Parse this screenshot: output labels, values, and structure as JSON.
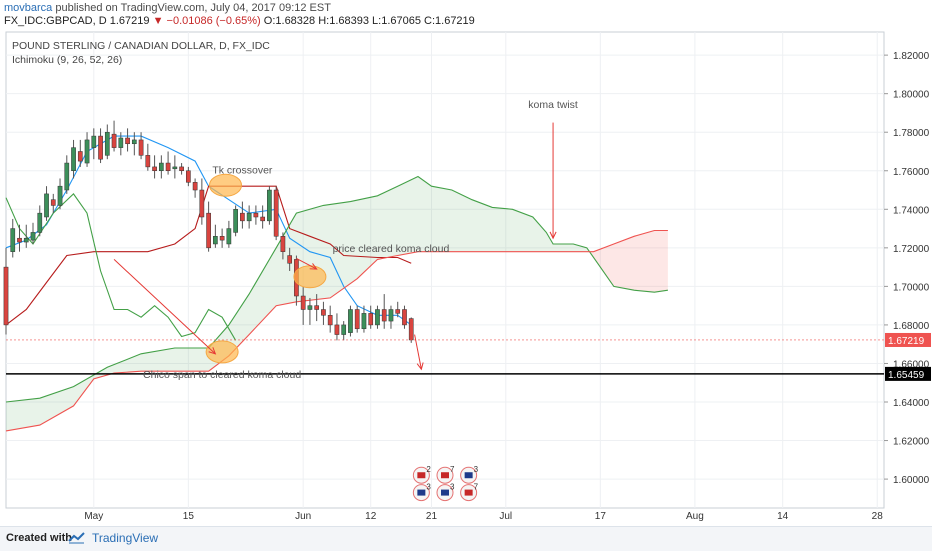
{
  "header": {
    "user": "movbarca",
    "published_text": "published on TradingView.com, July 04, 2017 09:12 EST",
    "quote_prefix": "FX_IDC:GBPCAD, D  1.67219",
    "quote_change": "▼ −0.01086 (−0.65%)",
    "quote_ohlc": " O:1.68328 H:1.68393 L:1.67065 C:1.67219"
  },
  "footer": {
    "created_with": "Created with",
    "brand": "TradingView"
  },
  "chart_data": {
    "type": "candlestick",
    "title": "POUND STERLING / CANADIAN DOLLAR, D, FX_IDC",
    "indicator": "Ichimoku (9, 26, 52, 26)",
    "ylim": [
      1.585,
      1.832
    ],
    "xlim": [
      0,
      130
    ],
    "price_ticks": [
      "1.82000",
      "1.80000",
      "1.78000",
      "1.76000",
      "1.74000",
      "1.72000",
      "1.70000",
      "1.68000",
      "1.66000",
      "1.64000",
      "1.62000",
      "1.60000"
    ],
    "x_ticks": [
      {
        "label": "May",
        "x": 13
      },
      {
        "label": "15",
        "x": 27
      },
      {
        "label": "Jun",
        "x": 44
      },
      {
        "label": "12",
        "x": 54
      },
      {
        "label": "21",
        "x": 63
      },
      {
        "label": "Jul",
        "x": 74
      },
      {
        "label": "17",
        "x": 88
      },
      {
        "label": "Aug",
        "x": 102
      },
      {
        "label": "14",
        "x": 115
      },
      {
        "label": "28",
        "x": 129
      }
    ],
    "last_price": {
      "value": 1.67219,
      "label": "1.67219",
      "color": "#ef5350"
    },
    "horizontal_line": {
      "value": 1.65459,
      "label": "1.65459",
      "color": "#000000"
    },
    "candles": [
      [
        0,
        1.71,
        1.72,
        1.675,
        1.68
      ],
      [
        1,
        1.718,
        1.735,
        1.715,
        1.73
      ],
      [
        2,
        1.725,
        1.732,
        1.718,
        1.723
      ],
      [
        3,
        1.723,
        1.732,
        1.72,
        1.725
      ],
      [
        4,
        1.724,
        1.733,
        1.722,
        1.728
      ],
      [
        5,
        1.728,
        1.742,
        1.726,
        1.738
      ],
      [
        6,
        1.736,
        1.752,
        1.734,
        1.748
      ],
      [
        7,
        1.745,
        1.748,
        1.738,
        1.742
      ],
      [
        8,
        1.742,
        1.756,
        1.74,
        1.752
      ],
      [
        9,
        1.75,
        1.768,
        1.748,
        1.764
      ],
      [
        10,
        1.76,
        1.776,
        1.756,
        1.772
      ],
      [
        11,
        1.77,
        1.776,
        1.762,
        1.765
      ],
      [
        12,
        1.764,
        1.78,
        1.762,
        1.776
      ],
      [
        13,
        1.772,
        1.782,
        1.766,
        1.778
      ],
      [
        14,
        1.778,
        1.782,
        1.764,
        1.766
      ],
      [
        15,
        1.768,
        1.784,
        1.766,
        1.78
      ],
      [
        16,
        1.779,
        1.786,
        1.77,
        1.772
      ],
      [
        17,
        1.772,
        1.78,
        1.768,
        1.777
      ],
      [
        18,
        1.777,
        1.782,
        1.77,
        1.774
      ],
      [
        19,
        1.774,
        1.78,
        1.768,
        1.776
      ],
      [
        20,
        1.776,
        1.78,
        1.766,
        1.768
      ],
      [
        21,
        1.768,
        1.774,
        1.76,
        1.762
      ],
      [
        22,
        1.762,
        1.768,
        1.756,
        1.76
      ],
      [
        23,
        1.76,
        1.768,
        1.756,
        1.764
      ],
      [
        24,
        1.764,
        1.77,
        1.758,
        1.76
      ],
      [
        25,
        1.761,
        1.768,
        1.756,
        1.762
      ],
      [
        26,
        1.762,
        1.764,
        1.758,
        1.76
      ],
      [
        27,
        1.76,
        1.762,
        1.752,
        1.754
      ],
      [
        28,
        1.754,
        1.756,
        1.746,
        1.75
      ],
      [
        29,
        1.75,
        1.756,
        1.732,
        1.736
      ],
      [
        30,
        1.738,
        1.744,
        1.718,
        1.72
      ],
      [
        31,
        1.722,
        1.732,
        1.72,
        1.726
      ],
      [
        32,
        1.726,
        1.73,
        1.72,
        1.724
      ],
      [
        33,
        1.722,
        1.734,
        1.72,
        1.73
      ],
      [
        34,
        1.728,
        1.742,
        1.726,
        1.74
      ],
      [
        35,
        1.738,
        1.744,
        1.73,
        1.734
      ],
      [
        36,
        1.734,
        1.742,
        1.73,
        1.738
      ],
      [
        37,
        1.738,
        1.742,
        1.732,
        1.736
      ],
      [
        38,
        1.736,
        1.742,
        1.73,
        1.734
      ],
      [
        39,
        1.734,
        1.752,
        1.732,
        1.75
      ],
      [
        40,
        1.75,
        1.752,
        1.724,
        1.726
      ],
      [
        41,
        1.726,
        1.728,
        1.714,
        1.718
      ],
      [
        42,
        1.716,
        1.72,
        1.708,
        1.712
      ],
      [
        43,
        1.714,
        1.716,
        1.69,
        1.695
      ],
      [
        44,
        1.695,
        1.7,
        1.68,
        1.688
      ],
      [
        45,
        1.688,
        1.694,
        1.68,
        1.69
      ],
      [
        46,
        1.69,
        1.696,
        1.682,
        1.688
      ],
      [
        47,
        1.688,
        1.692,
        1.68,
        1.685
      ],
      [
        48,
        1.685,
        1.69,
        1.676,
        1.68
      ],
      [
        49,
        1.68,
        1.686,
        1.672,
        1.675
      ],
      [
        50,
        1.675,
        1.682,
        1.672,
        1.68
      ],
      [
        51,
        1.676,
        1.69,
        1.674,
        1.688
      ],
      [
        52,
        1.688,
        1.69,
        1.676,
        1.678
      ],
      [
        53,
        1.678,
        1.69,
        1.676,
        1.686
      ],
      [
        54,
        1.686,
        1.69,
        1.678,
        1.68
      ],
      [
        55,
        1.68,
        1.69,
        1.678,
        1.688
      ],
      [
        56,
        1.688,
        1.696,
        1.678,
        1.682
      ],
      [
        57,
        1.682,
        1.69,
        1.678,
        1.688
      ],
      [
        58,
        1.688,
        1.692,
        1.684,
        1.686
      ],
      [
        59,
        1.688,
        1.69,
        1.678,
        1.68
      ],
      [
        60,
        1.6833,
        1.6839,
        1.6707,
        1.6722
      ]
    ],
    "series": [
      {
        "name": "Conversion Line",
        "color": "#2196f3",
        "values": [
          [
            0,
            1.72
          ],
          [
            3,
            1.724
          ],
          [
            6,
            1.732
          ],
          [
            9,
            1.75
          ],
          [
            12,
            1.77
          ],
          [
            16,
            1.778
          ],
          [
            20,
            1.778
          ],
          [
            24,
            1.772
          ],
          [
            28,
            1.765
          ],
          [
            30,
            1.752
          ],
          [
            33,
            1.745
          ],
          [
            36,
            1.738
          ],
          [
            40,
            1.74
          ],
          [
            42,
            1.725
          ],
          [
            45,
            1.718
          ],
          [
            48,
            1.715
          ],
          [
            50,
            1.7
          ],
          [
            52,
            1.69
          ],
          [
            55,
            1.685
          ],
          [
            58,
            1.685
          ],
          [
            60,
            1.68
          ]
        ]
      },
      {
        "name": "Base Line",
        "color": "#b71c1c",
        "values": [
          [
            0,
            1.68
          ],
          [
            3,
            1.688
          ],
          [
            6,
            1.702
          ],
          [
            9,
            1.716
          ],
          [
            13,
            1.718
          ],
          [
            17,
            1.718
          ],
          [
            21,
            1.718
          ],
          [
            25,
            1.722
          ],
          [
            28,
            1.73
          ],
          [
            30,
            1.752
          ],
          [
            33,
            1.752
          ],
          [
            36,
            1.752
          ],
          [
            40,
            1.752
          ],
          [
            42,
            1.73
          ],
          [
            45,
            1.726
          ],
          [
            48,
            1.722
          ],
          [
            50,
            1.716
          ],
          [
            55,
            1.715
          ],
          [
            58,
            1.715
          ],
          [
            60,
            1.712
          ]
        ]
      },
      {
        "name": "Lagging Span",
        "color": "#43a047",
        "values": [
          [
            0,
            1.746
          ],
          [
            2,
            1.73
          ],
          [
            4,
            1.722
          ],
          [
            7,
            1.738
          ],
          [
            10,
            1.748
          ],
          [
            12,
            1.738
          ],
          [
            14,
            1.708
          ],
          [
            16,
            1.688
          ],
          [
            18,
            1.688
          ],
          [
            20,
            1.684
          ],
          [
            22,
            1.69
          ],
          [
            24,
            1.684
          ],
          [
            26,
            1.674
          ],
          [
            28,
            1.676
          ],
          [
            30,
            1.688
          ],
          [
            32,
            1.684
          ],
          [
            34,
            1.672
          ]
        ]
      },
      {
        "name": "Lead 1",
        "color": "#43a047",
        "values": [
          [
            0,
            1.64
          ],
          [
            5,
            1.642
          ],
          [
            10,
            1.648
          ],
          [
            15,
            1.658
          ],
          [
            20,
            1.665
          ],
          [
            25,
            1.668
          ],
          [
            30,
            1.668
          ],
          [
            33,
            1.68
          ],
          [
            36,
            1.696
          ],
          [
            40,
            1.72
          ],
          [
            43,
            1.738
          ],
          [
            47,
            1.742
          ],
          [
            51,
            1.744
          ],
          [
            55,
            1.747
          ],
          [
            58,
            1.752
          ],
          [
            61,
            1.757
          ],
          [
            63,
            1.752
          ],
          [
            66,
            1.75
          ],
          [
            69,
            1.745
          ],
          [
            72,
            1.741
          ],
          [
            75,
            1.74
          ],
          [
            78,
            1.736
          ],
          [
            80,
            1.728
          ],
          [
            81,
            1.722
          ],
          [
            84,
            1.722
          ],
          [
            86,
            1.72
          ],
          [
            88,
            1.71
          ],
          [
            90,
            1.7
          ],
          [
            93,
            1.698
          ],
          [
            96,
            1.697
          ],
          [
            98,
            1.698
          ]
        ]
      },
      {
        "name": "Lead 2",
        "color": "#ef5350",
        "values": [
          [
            0,
            1.625
          ],
          [
            5,
            1.628
          ],
          [
            10,
            1.638
          ],
          [
            13,
            1.652
          ],
          [
            16,
            1.655
          ],
          [
            20,
            1.656
          ],
          [
            25,
            1.656
          ],
          [
            30,
            1.656
          ],
          [
            33,
            1.664
          ],
          [
            36,
            1.675
          ],
          [
            40,
            1.69
          ],
          [
            43,
            1.692
          ],
          [
            48,
            1.694
          ],
          [
            52,
            1.704
          ],
          [
            55,
            1.714
          ],
          [
            58,
            1.716
          ],
          [
            61,
            1.718
          ],
          [
            64,
            1.718
          ],
          [
            68,
            1.718
          ],
          [
            72,
            1.718
          ],
          [
            76,
            1.718
          ],
          [
            80,
            1.718
          ],
          [
            84,
            1.718
          ],
          [
            87,
            1.718
          ],
          [
            90,
            1.722
          ],
          [
            93,
            1.726
          ],
          [
            96,
            1.729
          ],
          [
            98,
            1.729
          ]
        ]
      }
    ],
    "annotations": [
      {
        "text": "Tk crossover",
        "x": 35,
        "y": 1.7585
      },
      {
        "text": "price cleared koma cloud",
        "x": 57,
        "y": 1.7178
      },
      {
        "text": "koma twist",
        "x": 81,
        "y": 1.7925
      },
      {
        "text": "Chico span to cleared koma cloud",
        "x": 32,
        "y": 1.6525
      }
    ],
    "event_badges": [
      "2",
      "7",
      "3",
      "3",
      "3",
      "7"
    ]
  }
}
